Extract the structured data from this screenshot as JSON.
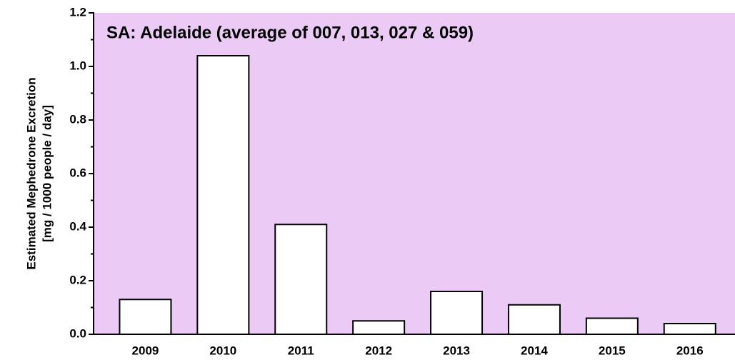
{
  "chart_data": {
    "type": "bar",
    "title": "SA: Adelaide (average of 007, 013, 027 & 059)",
    "y_label": [
      "Estimated Mephedrone Excretion",
      "[mg / 1000 people / day]"
    ],
    "categories": [
      "2009",
      "2010",
      "2011",
      "2012",
      "2013",
      "2014",
      "2015",
      "2016"
    ],
    "values": [
      0.13,
      1.04,
      0.41,
      0.05,
      0.16,
      0.11,
      0.06,
      0.04
    ],
    "color": "#ffffff",
    "background": "#eccaf6",
    "ylim": [
      0,
      1.2
    ],
    "yticks": [
      {
        "value": 0,
        "label": "0.0"
      },
      0.2,
      0.4,
      0.6,
      0.8,
      {
        "value": 1,
        "label": "1.0"
      },
      {
        "value": 1.2,
        "label": "1.2"
      }
    ],
    "yminorticks": [
      0.1,
      0.3,
      0.5,
      0.7,
      0.9,
      1.1
    ]
  }
}
